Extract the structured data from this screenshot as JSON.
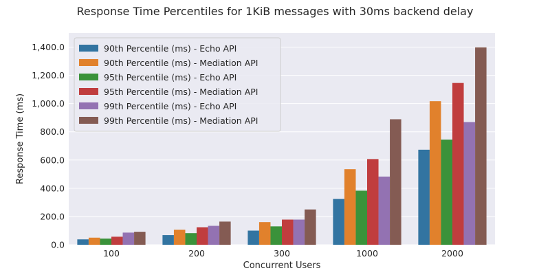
{
  "chart_data": {
    "type": "bar",
    "title": "Response Time Percentiles for 1KiB messages with 30ms backend delay",
    "xlabel": "Concurrent Users",
    "ylabel": "Response Time (ms)",
    "ylim": [
      0,
      1500
    ],
    "yticks": [
      0,
      200,
      400,
      600,
      800,
      1000,
      1200,
      1400
    ],
    "ytick_labels": [
      "0.0",
      "200.0",
      "400.0",
      "600.0",
      "800.0",
      "1,000.0",
      "1,200.0",
      "1,400.0"
    ],
    "grid": true,
    "legend_position": "top-left",
    "categories": [
      "100",
      "200",
      "300",
      "1000",
      "2000"
    ],
    "series": [
      {
        "name": "90th Percentile (ms) - Echo API",
        "color": "#3274a1",
        "values": [
          38,
          68,
          100,
          325,
          673
        ]
      },
      {
        "name": "90th Percentile (ms) - Mediation API",
        "color": "#e1812c",
        "values": [
          50,
          107,
          160,
          535,
          1017
        ]
      },
      {
        "name": "95th Percentile (ms) - Echo API",
        "color": "#3a923a",
        "values": [
          44,
          82,
          130,
          383,
          745
        ]
      },
      {
        "name": "95th Percentile (ms) - Mediation API",
        "color": "#c03d3e",
        "values": [
          57,
          124,
          178,
          607,
          1146
        ]
      },
      {
        "name": "99th Percentile (ms) - Echo API",
        "color": "#9372b2",
        "values": [
          86,
          134,
          178,
          483,
          869
        ]
      },
      {
        "name": "99th Percentile (ms) - Mediation API",
        "color": "#845b53",
        "values": [
          92,
          164,
          250,
          889,
          1398
        ]
      }
    ]
  }
}
